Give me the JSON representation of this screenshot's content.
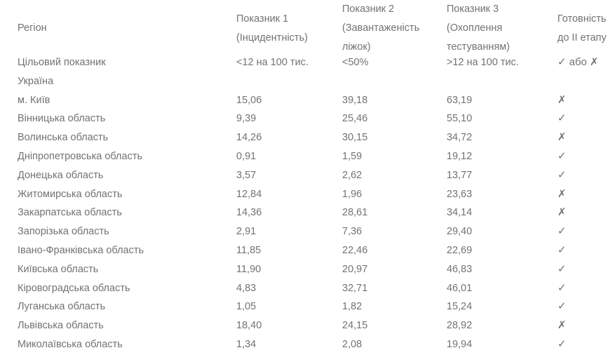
{
  "colors": {
    "text": "#6f7377",
    "background": "#ffffff"
  },
  "chart_data": {
    "type": "table",
    "columns": {
      "region": {
        "label": "Регіон"
      },
      "indicator1": {
        "line1": "Показник 1",
        "line2": "(Інцидентність)"
      },
      "indicator2": {
        "line1": "Показник 2",
        "line2": "(Завантаженість",
        "line3": "ліжок)"
      },
      "indicator3": {
        "line1": "Показник 3",
        "line2": "(Охоплення",
        "line3": "тестуванням)"
      },
      "readiness": {
        "line1": "Готовність",
        "line2": "до ІІ етапу"
      }
    },
    "target_row": {
      "region": "Цільовий показник",
      "indicator1": "<12 на 100 тис.",
      "indicator2": "<50%",
      "indicator3": ">12 на 100 тис.",
      "readiness": "✓ або ✗"
    },
    "country_row": {
      "region": "Україна",
      "indicator1": "",
      "indicator2": "",
      "indicator3": "",
      "readiness": ""
    },
    "rows": [
      {
        "region": "м. Київ",
        "indicator1": "15,06",
        "indicator2": "39,18",
        "indicator3": "63,19",
        "readiness": "✗"
      },
      {
        "region": "Вінницька область",
        "indicator1": "9,39",
        "indicator2": "25,46",
        "indicator3": "55,10",
        "readiness": "✓"
      },
      {
        "region": "Волинська область",
        "indicator1": "14,26",
        "indicator2": "30,15",
        "indicator3": "34,72",
        "readiness": "✗"
      },
      {
        "region": "Дніпропетровська область",
        "indicator1": "0,91",
        "indicator2": "1,59",
        "indicator3": "19,12",
        "readiness": "✓"
      },
      {
        "region": "Донецька область",
        "indicator1": "3,57",
        "indicator2": "2,62",
        "indicator3": "13,77",
        "readiness": "✓"
      },
      {
        "region": "Житомирська область",
        "indicator1": "12,84",
        "indicator2": "1,96",
        "indicator3": "23,63",
        "readiness": "✗"
      },
      {
        "region": "Закарпатська область",
        "indicator1": "14,36",
        "indicator2": "28,61",
        "indicator3": "34,14",
        "readiness": "✗"
      },
      {
        "region": "Запорізька область",
        "indicator1": "2,91",
        "indicator2": "7,36",
        "indicator3": "29,40",
        "readiness": "✓"
      },
      {
        "region": "Івано-Франківська область",
        "indicator1": "11,85",
        "indicator2": "22,46",
        "indicator3": "22,69",
        "readiness": "✓"
      },
      {
        "region": "Київська область",
        "indicator1": "11,90",
        "indicator2": "20,97",
        "indicator3": "46,83",
        "readiness": "✓"
      },
      {
        "region": "Кіровоградська область",
        "indicator1": "4,83",
        "indicator2": "32,71",
        "indicator3": "46,01",
        "readiness": "✓"
      },
      {
        "region": "Луганська область",
        "indicator1": "1,05",
        "indicator2": "1,82",
        "indicator3": "15,24",
        "readiness": "✓"
      },
      {
        "region": "Львівська область",
        "indicator1": "18,40",
        "indicator2": "24,15",
        "indicator3": "28,92",
        "readiness": "✗"
      },
      {
        "region": "Миколаївська область",
        "indicator1": "1,34",
        "indicator2": "2,08",
        "indicator3": "19,94",
        "readiness": "✓"
      }
    ]
  }
}
